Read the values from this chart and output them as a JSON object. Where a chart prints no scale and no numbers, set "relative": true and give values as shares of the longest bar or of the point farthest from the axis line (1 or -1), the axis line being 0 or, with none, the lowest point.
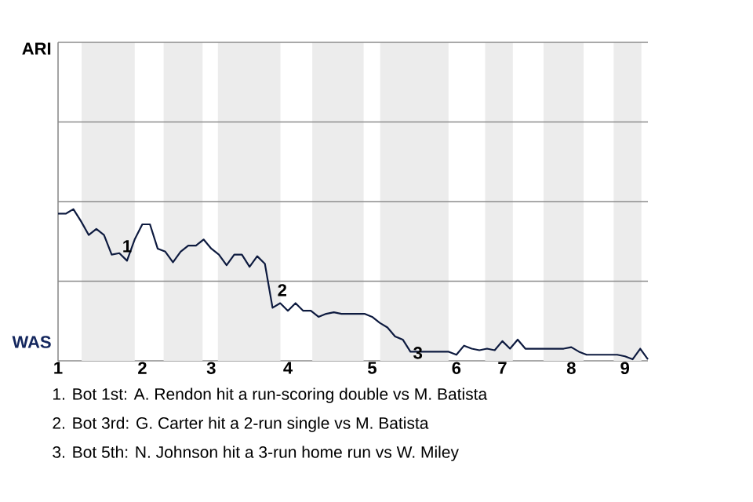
{
  "chart_data": {
    "type": "line",
    "categories": [
      "1",
      null,
      null,
      null,
      null,
      null,
      null,
      null,
      null,
      null,
      null,
      "2",
      null,
      null,
      null,
      null,
      null,
      null,
      null,
      null,
      "3",
      null,
      null,
      null,
      null,
      null,
      null,
      null,
      null,
      null,
      "4",
      null,
      null,
      null,
      null,
      null,
      null,
      null,
      null,
      null,
      null,
      "5",
      null,
      null,
      null,
      null,
      null,
      null,
      null,
      null,
      null,
      null,
      "6",
      null,
      null,
      null,
      null,
      null,
      "7",
      null,
      null,
      null,
      null,
      null,
      null,
      null,
      null,
      "8",
      null,
      null,
      null,
      null,
      null,
      null,
      "9",
      null,
      null,
      null
    ],
    "relative": true,
    "series": [
      {
        "color": "#0d1a3f",
        "values": [
          0.97,
          0.97,
          1,
          0.92,
          0.83,
          0.87,
          0.83,
          0.7,
          0.71,
          0.66,
          0.8,
          0.9,
          0.9,
          0.74,
          0.72,
          0.65,
          0.72,
          0.76,
          0.76,
          0.8,
          0.74,
          0.7,
          0.63,
          0.7,
          0.7,
          0.62,
          0.69,
          0.64,
          0.35,
          0.38,
          0.33,
          0.38,
          0.33,
          0.33,
          0.29,
          0.31,
          0.32,
          0.31,
          0.31,
          0.31,
          0.31,
          0.29,
          0.25,
          0.22,
          0.16,
          0.14,
          0.06,
          0.06,
          0.06,
          0.06,
          0.06,
          0.06,
          0.04,
          0.1,
          0.08,
          0.07,
          0.08,
          0.07,
          0.13,
          0.08,
          0.14,
          0.08,
          0.08,
          0.08,
          0.08,
          0.08,
          0.08,
          0.09,
          0.06,
          0.04,
          0.04,
          0.04,
          0.04,
          0.04,
          0.03,
          0.01,
          0.08,
          0.01
        ]
      }
    ],
    "ref_lines": [
      {
        "axis": "y",
        "value": 0.525,
        "color": "#8c8c8c"
      }
    ],
    "annotations": [
      "1",
      "2",
      "3",
      "ARI",
      "WAS",
      "1. Bot 1st: A. Rendon hit a run-scoring double vs M. Batista",
      "2. Bot 3rd: G. Carter hit a 2-run single vs M. Batista",
      "3. Bot 5th: N. Johnson hit a 3-run home run vs W. Miley"
    ]
  }
}
